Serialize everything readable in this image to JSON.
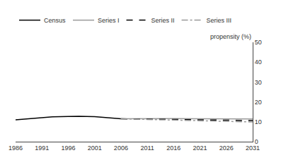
{
  "chart_data": {
    "type": "line",
    "x": [
      1986,
      1988,
      1991,
      1993,
      1996,
      1998,
      2001,
      2003,
      2006,
      2011,
      2016,
      2021,
      2026,
      2031
    ],
    "series": [
      {
        "name": "Census",
        "color": "#000000",
        "line_style": "solid",
        "values": [
          11.0,
          11.5,
          12.2,
          12.5,
          12.7,
          12.8,
          12.6,
          12.2,
          11.5,
          null,
          null,
          null,
          null,
          null
        ]
      },
      {
        "name": "Series I",
        "color": "#999999",
        "line_style": "solid",
        "values": [
          null,
          null,
          null,
          null,
          null,
          null,
          null,
          null,
          11.5,
          11.6,
          11.6,
          11.5,
          11.4,
          11.4
        ]
      },
      {
        "name": "Series II",
        "color": "#000000",
        "line_style": "dashed",
        "values": [
          null,
          null,
          null,
          null,
          null,
          null,
          null,
          null,
          11.5,
          11.4,
          11.2,
          11.0,
          10.8,
          10.6
        ]
      },
      {
        "name": "Series III",
        "color": "#999999",
        "line_style": "dashdot",
        "values": [
          null,
          null,
          null,
          null,
          null,
          null,
          null,
          null,
          11.5,
          11.2,
          10.9,
          10.5,
          10.2,
          9.9
        ]
      }
    ],
    "ylabel": "propensity (%)",
    "xlim": [
      1986,
      2031
    ],
    "xticks": [
      1986,
      1991,
      1996,
      2001,
      2006,
      2011,
      2016,
      2021,
      2026,
      2031
    ],
    "ylim": [
      0,
      50
    ],
    "yticks": [
      0,
      10,
      20,
      30,
      40,
      50
    ],
    "grid": false,
    "legend": "upper left"
  }
}
